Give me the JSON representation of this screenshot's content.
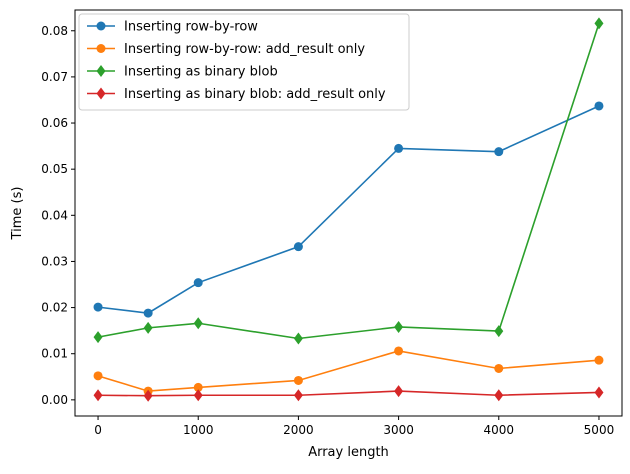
{
  "chart_data": {
    "type": "line",
    "title": "",
    "xlabel": "Array length",
    "ylabel": "Time (s)",
    "xlim": [
      -230,
      5230
    ],
    "ylim": [
      -0.0035,
      0.0845
    ],
    "xticks": [
      0,
      1000,
      2000,
      3000,
      4000,
      5000
    ],
    "xtick_labels": [
      "0",
      "1000",
      "2000",
      "3000",
      "4000",
      "5000"
    ],
    "yticks": [
      0.0,
      0.01,
      0.02,
      0.03,
      0.04,
      0.05,
      0.06,
      0.07,
      0.08
    ],
    "ytick_labels": [
      "0.00",
      "0.01",
      "0.02",
      "0.03",
      "0.04",
      "0.05",
      "0.06",
      "0.07",
      "0.08"
    ],
    "grid": false,
    "legend_position": "top-left",
    "x": [
      0,
      500,
      1000,
      2000,
      3000,
      4000,
      5000
    ],
    "series": [
      {
        "name": "Inserting row-by-row",
        "color": "#1f77b4",
        "marker": "circle",
        "values": [
          0.0201,
          0.0188,
          0.0254,
          0.0332,
          0.0545,
          0.0538,
          0.0637
        ]
      },
      {
        "name": "Inserting row-by-row: add_result only",
        "color": "#ff7f0e",
        "marker": "circle",
        "values": [
          0.0052,
          0.0019,
          0.0027,
          0.0042,
          0.0106,
          0.0068,
          0.0086
        ]
      },
      {
        "name": "Inserting as binary blob",
        "color": "#2ca02c",
        "marker": "diamond",
        "values": [
          0.0136,
          0.0156,
          0.0166,
          0.0133,
          0.0158,
          0.0149,
          0.0816
        ]
      },
      {
        "name": "Inserting as binary blob: add_result only",
        "color": "#d62728",
        "marker": "diamond",
        "values": [
          0.001,
          0.0009,
          0.001,
          0.001,
          0.0019,
          0.001,
          0.0016
        ]
      }
    ]
  }
}
